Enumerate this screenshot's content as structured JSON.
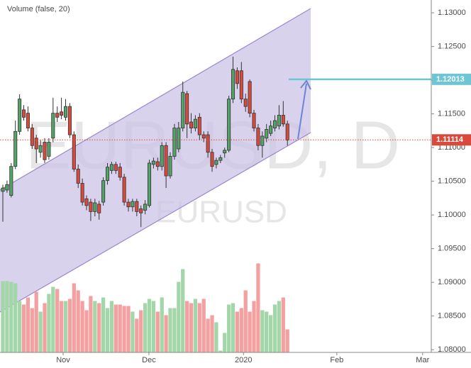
{
  "chart_data": {
    "type": "candlestick",
    "watermark": "EURUSD, D",
    "symbol": "EURUSD",
    "indicator": "Volume (false, 20)",
    "x": [
      0,
      1,
      2,
      3,
      4,
      5,
      6,
      7,
      8,
      9,
      10,
      11,
      12,
      13,
      14,
      15,
      16,
      17,
      18,
      19,
      20,
      21,
      22,
      23,
      24,
      25,
      26,
      27,
      28,
      29,
      30,
      31,
      32,
      33,
      34,
      35,
      36,
      37,
      38,
      39,
      40,
      41,
      42,
      43,
      44,
      45,
      46,
      47,
      48,
      49,
      50,
      51,
      52,
      53,
      54,
      55,
      56,
      57,
      58,
      59,
      60,
      61,
      62,
      63,
      64,
      65,
      66,
      67,
      68
    ],
    "open": [
      1.1035,
      1.1037,
      1.1029,
      1.1072,
      1.1124,
      1.1156,
      1.1151,
      1.1129,
      1.1114,
      1.1093,
      1.1108,
      1.1087,
      1.1114,
      1.1151,
      1.1153,
      1.1145,
      1.1161,
      1.1119,
      1.1068,
      1.1047,
      1.1024,
      1.1019,
      1.1005,
      1.1016,
      1.1019,
      1.1051,
      1.1066,
      1.1075,
      1.1071,
      1.1056,
      1.1019,
      1.1012,
      1.102,
      1.1009,
      1.1007,
      1.1014,
      1.1075,
      1.1079,
      1.1072,
      1.1103,
      1.1058,
      1.1087,
      1.1098,
      1.1129,
      1.118,
      1.1138,
      1.1129,
      1.1145,
      1.1119,
      1.1119,
      1.1093,
      1.1075,
      1.1081,
      1.1092,
      1.1096,
      1.1172,
      1.1214,
      1.1214,
      1.1172,
      1.1198,
      1.1151,
      1.1129,
      1.1103,
      1.1114,
      1.1121,
      1.1129,
      1.1132,
      1.1148,
      1.1135
    ],
    "high": [
      1.1045,
      1.1051,
      1.1077,
      1.114,
      1.1179,
      1.1163,
      1.1161,
      1.1135,
      1.1119,
      1.1111,
      1.1114,
      1.1114,
      1.1174,
      1.1161,
      1.1174,
      1.1172,
      1.1166,
      1.1124,
      1.1075,
      1.1054,
      1.1029,
      1.1024,
      1.1024,
      1.1021,
      1.1056,
      1.1077,
      1.1079,
      1.1079,
      1.1077,
      1.1061,
      1.1024,
      1.1024,
      1.1024,
      1.1014,
      1.1022,
      1.1082,
      1.1085,
      1.1085,
      1.1108,
      1.1108,
      1.1093,
      1.1135,
      1.1138,
      1.1198,
      1.1184,
      1.1151,
      1.1148,
      1.1151,
      1.1124,
      1.1124,
      1.1098,
      1.1085,
      1.1089,
      1.11,
      1.1177,
      1.1235,
      1.1219,
      1.1227,
      1.118,
      1.1201,
      1.1156,
      1.1135,
      1.1124,
      1.1135,
      1.114,
      1.1148,
      1.1163,
      1.1169,
      1.114
    ],
    "low": [
      1.099,
      1.1033,
      1.1026,
      1.1068,
      1.1119,
      1.114,
      1.1124,
      1.1098,
      1.1077,
      1.1085,
      1.1077,
      1.1082,
      1.1108,
      1.1138,
      1.1142,
      1.114,
      1.1114,
      1.1064,
      1.104,
      1.1014,
      1.1007,
      1.0991,
      1.0998,
      1.0993,
      1.1014,
      1.1045,
      1.1061,
      1.1061,
      1.1051,
      1.1014,
      1.1005,
      1.1005,
      1.0998,
      1.0982,
      1.1001,
      1.1011,
      1.1069,
      1.1066,
      1.1066,
      1.104,
      1.1054,
      1.1082,
      1.1093,
      1.1124,
      1.1114,
      1.1121,
      1.1124,
      1.1111,
      1.1108,
      1.1085,
      1.1064,
      1.1069,
      1.1077,
      1.1085,
      1.1093,
      1.1166,
      1.1187,
      1.1166,
      1.1153,
      1.1145,
      1.1124,
      1.1096,
      1.1085,
      1.1108,
      1.1117,
      1.1124,
      1.1127,
      1.1131,
      1.1103
    ],
    "close": [
      1.104,
      1.1045,
      1.1072,
      1.1124,
      1.1172,
      1.1145,
      1.1129,
      1.1103,
      1.1098,
      1.1103,
      1.1082,
      1.1108,
      1.1151,
      1.1145,
      1.1148,
      1.1161,
      1.1119,
      1.1068,
      1.1047,
      1.1019,
      1.1014,
      1.1005,
      1.1018,
      1.1003,
      1.1051,
      1.1071,
      1.1075,
      1.1066,
      1.1056,
      1.1019,
      1.1012,
      1.102,
      1.1005,
      1.1003,
      1.1016,
      1.1077,
      1.108,
      1.1072,
      1.1103,
      1.1058,
      1.1087,
      1.1129,
      1.1129,
      1.1182,
      1.1135,
      1.1129,
      1.1142,
      1.1119,
      1.1114,
      1.1093,
      1.1072,
      1.1081,
      1.1085,
      1.1096,
      1.1172,
      1.1216,
      1.1195,
      1.1172,
      1.1161,
      1.1151,
      1.1129,
      1.1103,
      1.1117,
      1.1127,
      1.1132,
      1.114,
      1.1148,
      1.1135,
      1.1111
    ],
    "volume": [
      100,
      100,
      99,
      97,
      72,
      67,
      77,
      62,
      85,
      57,
      69,
      82,
      92,
      89,
      72,
      72,
      75,
      97,
      87,
      72,
      59,
      79,
      72,
      69,
      77,
      62,
      72,
      67,
      67,
      65,
      65,
      57,
      47,
      59,
      69,
      75,
      72,
      57,
      77,
      52,
      62,
      62,
      99,
      117,
      72,
      69,
      75,
      69,
      75,
      47,
      52,
      42,
      2,
      27,
      67,
      69,
      57,
      62,
      87,
      57,
      72,
      125,
      59,
      57,
      52,
      67,
      72,
      77,
      32
    ],
    "xlim": [
      -0.68,
      102.37
    ],
    "xticks": [
      {
        "value": 14.4,
        "label": "Nov"
      },
      {
        "value": 34.9,
        "label": "Dec"
      },
      {
        "value": 57.5,
        "label": "2020"
      },
      {
        "value": 79.8,
        "label": "Feb"
      },
      {
        "value": 100.3,
        "label": "Mar"
      }
    ],
    "ylim": [
      1.0796,
      1.1319
    ],
    "yticks": [
      {
        "value": 1.13,
        "label": "1.13000"
      },
      {
        "value": 1.125,
        "label": "1.12500"
      },
      {
        "value": 1.12,
        "label": "1.12000"
      },
      {
        "value": 1.115,
        "label": "1.11500"
      },
      {
        "value": 1.11,
        "label": "1.11000"
      },
      {
        "value": 1.105,
        "label": "1.10500"
      },
      {
        "value": 1.1,
        "label": "1.10000"
      },
      {
        "value": 1.095,
        "label": "1.09500"
      },
      {
        "value": 1.09,
        "label": "1.09000"
      },
      {
        "value": 1.085,
        "label": "1.08500"
      },
      {
        "value": 1.08,
        "label": "1.08000"
      }
    ],
    "volume_ylim": [
      0,
      140
    ],
    "up_color": "#53a466",
    "down_color": "#d9493c",
    "volume_up_color": "#a3d6a8",
    "volume_down_color": "#f5a0a0",
    "level": {
      "value": 1.12013,
      "label": "1.12013",
      "color": "#6cc6d4"
    },
    "last_price": {
      "value": 1.11114,
      "label": "1.11114",
      "color": "#d9493c"
    }
  }
}
